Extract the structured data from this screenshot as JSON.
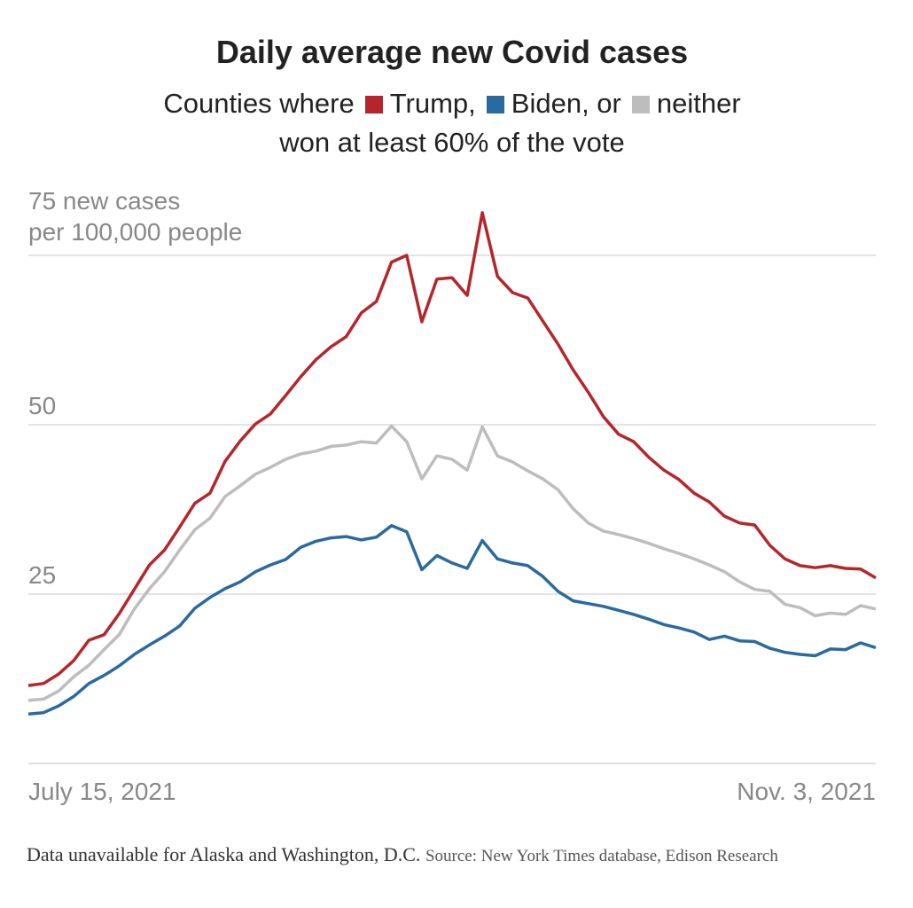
{
  "chart_data": {
    "type": "line",
    "title": "Daily average new Covid cases",
    "subtitle_prefix": "Counties where",
    "legend_separators": [
      ",",
      ", or"
    ],
    "subtitle_line2": "won at least 60% of the vote",
    "y_label": "per 100,000 people",
    "categories": [
      "July 15, 2021",
      null,
      null,
      null,
      null,
      null,
      null,
      null,
      null,
      null,
      null,
      null,
      null,
      null,
      null,
      null,
      null,
      null,
      null,
      null,
      null,
      null,
      null,
      null,
      null,
      null,
      null,
      null,
      null,
      null,
      null,
      null,
      null,
      null,
      null,
      null,
      null,
      null,
      null,
      null,
      null,
      null,
      null,
      null,
      null,
      null,
      null,
      null,
      null,
      null,
      null,
      null,
      null,
      null,
      null,
      null,
      "Nov. 3, 2021"
    ],
    "series": [
      {
        "name": "Trump",
        "color": "#b5262b",
        "values": [
          11.5,
          11.8,
          13.2,
          15.2,
          18.2,
          19.0,
          22.1,
          25.7,
          29.3,
          31.5,
          34.9,
          38.4,
          39.9,
          44.6,
          47.6,
          50.1,
          51.6,
          54.3,
          57.1,
          59.6,
          61.5,
          63.0,
          66.5,
          68.2,
          74.0,
          75.0,
          65.2,
          71.5,
          71.7,
          69.1,
          81.3,
          71.9,
          69.5,
          68.7,
          65.3,
          61.9,
          58.1,
          54.8,
          51.2,
          48.6,
          47.5,
          45.2,
          43.3,
          41.9,
          39.9,
          38.6,
          36.5,
          35.5,
          35.2,
          32.2,
          30.2,
          29.2,
          28.9,
          29.2,
          28.8,
          28.7,
          27.4
        ]
      },
      {
        "name": "Biden",
        "color": "#2b6a9e",
        "values": [
          7.3,
          7.5,
          8.5,
          9.9,
          11.8,
          13.0,
          14.4,
          16.1,
          17.5,
          18.8,
          20.3,
          22.9,
          24.5,
          25.8,
          26.8,
          28.3,
          29.3,
          30.1,
          31.9,
          32.8,
          33.3,
          33.5,
          33.0,
          33.4,
          35.1,
          34.2,
          28.6,
          30.7,
          29.6,
          28.8,
          32.9,
          30.2,
          29.6,
          29.2,
          27.6,
          25.4,
          24.0,
          23.6,
          23.2,
          22.6,
          22.0,
          21.3,
          20.5,
          20.0,
          19.4,
          18.3,
          18.8,
          18.1,
          18.0,
          17.0,
          16.4,
          16.1,
          15.9,
          16.9,
          16.8,
          17.8,
          17.1
        ]
      },
      {
        "name": "neither",
        "color": "#bdbdbd",
        "values": [
          9.3,
          9.5,
          10.7,
          12.8,
          14.5,
          16.8,
          19.0,
          22.8,
          25.8,
          28.3,
          31.5,
          34.5,
          36.2,
          39.4,
          41.0,
          42.7,
          43.7,
          44.9,
          45.7,
          46.1,
          46.8,
          47.0,
          47.5,
          47.3,
          49.8,
          47.5,
          42.0,
          45.4,
          44.9,
          43.3,
          49.7,
          45.4,
          44.5,
          43.2,
          42.0,
          40.4,
          37.6,
          35.5,
          34.3,
          33.8,
          33.2,
          32.5,
          31.7,
          31.0,
          30.2,
          29.3,
          28.3,
          26.8,
          25.7,
          25.4,
          23.5,
          23.0,
          21.8,
          22.2,
          22.0,
          23.3,
          22.8
        ]
      }
    ],
    "ylim": [
      0,
      75
    ],
    "yticks": [
      25,
      50,
      {
        "value": 75,
        "label": "75 new cases"
      }
    ],
    "grid": true,
    "note": "Data unavailable for Alaska and Washington, D.C.",
    "source": "Source: New York Times database, Edison Research"
  }
}
